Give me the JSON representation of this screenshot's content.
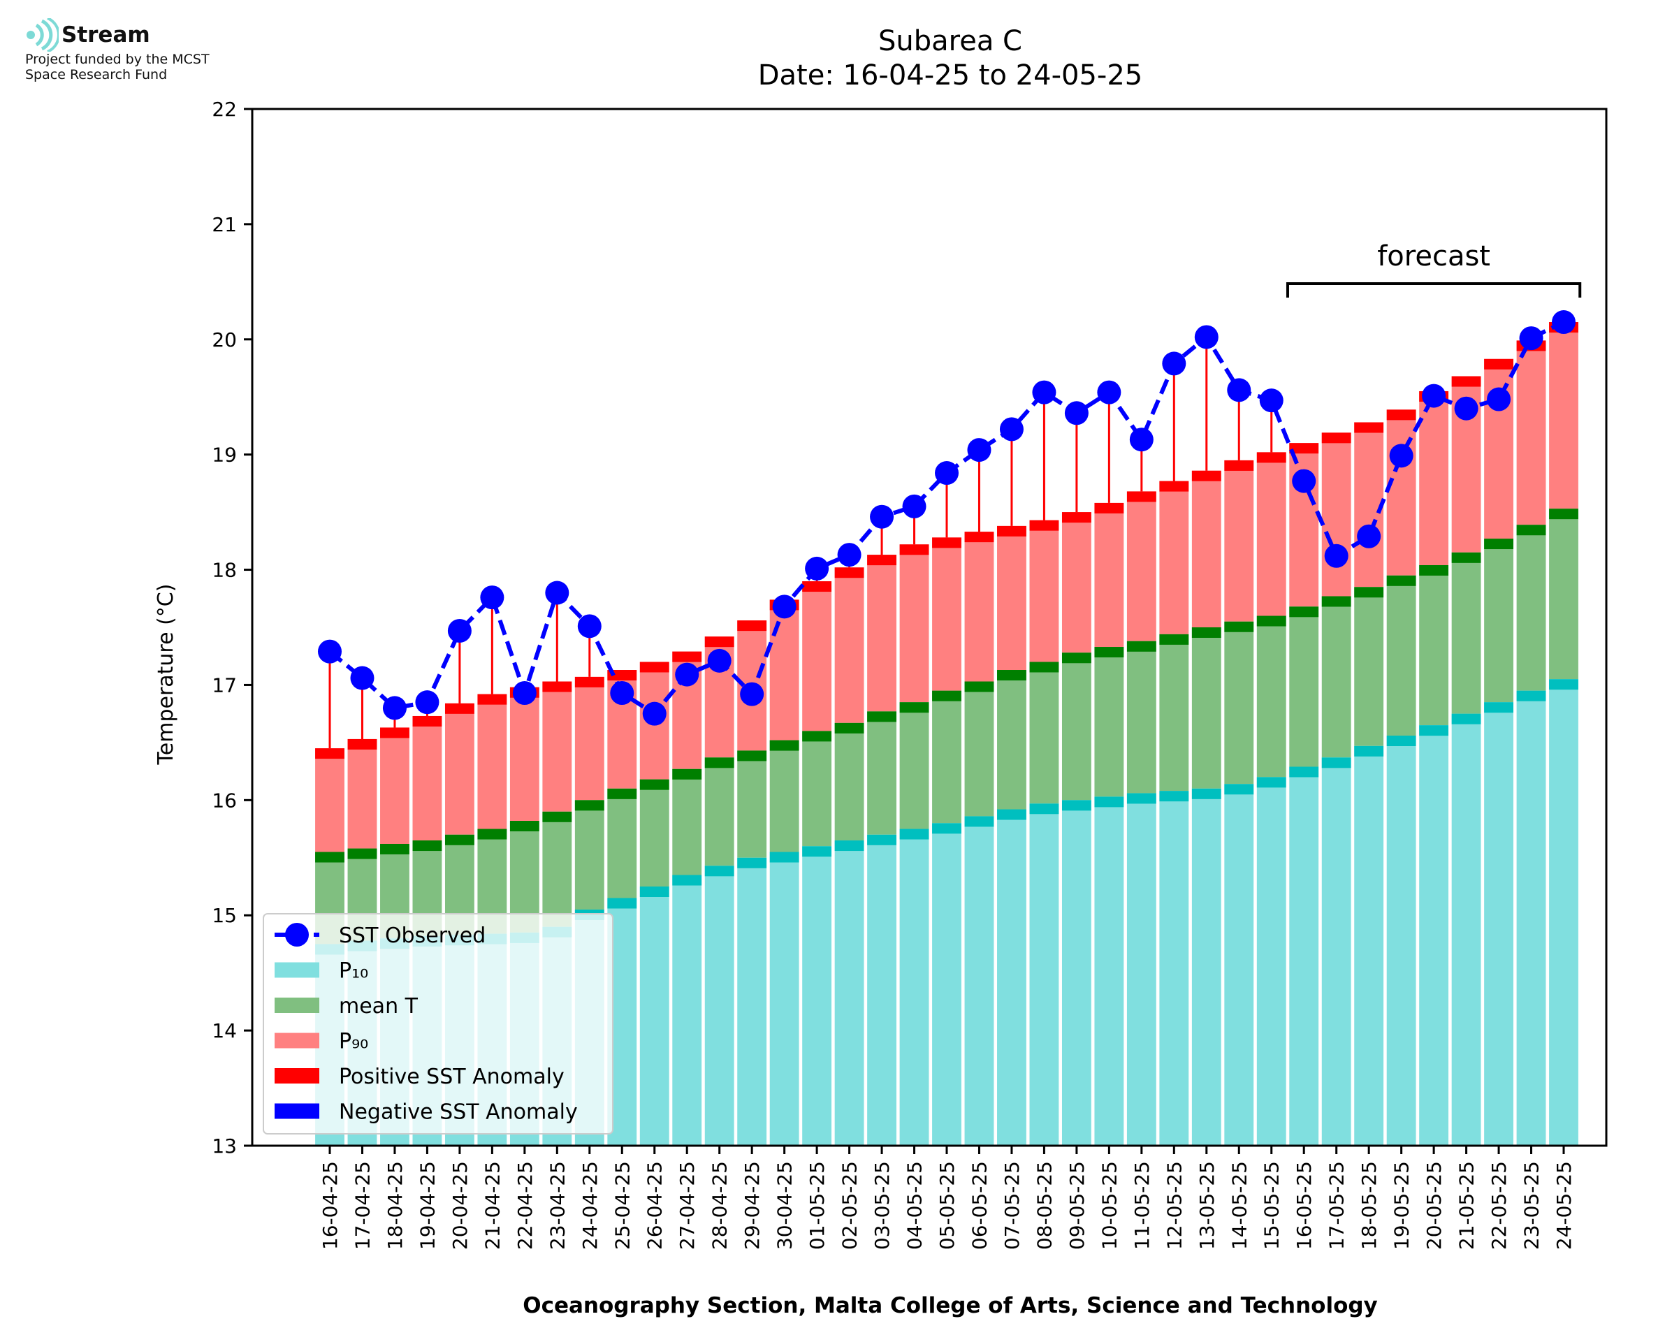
{
  "logo": {
    "name": "Stream",
    "line1": "Project funded by the MCST",
    "line2": "Space Research Fund",
    "color": "#7ddad6"
  },
  "chart_data": {
    "type": "bar",
    "title": "Subarea C",
    "subtitle": "Date: 16-04-25 to 24-05-25",
    "xlabel": "Oceanography Section, Malta College of Arts, Science and Technology",
    "ylabel": "Temperature (°C)",
    "ylim": [
      13,
      22
    ],
    "yticks": [
      13,
      14,
      15,
      16,
      17,
      18,
      19,
      20,
      21,
      22
    ],
    "grid": false,
    "legend_position": "lower-left",
    "forecast_label": "forecast",
    "forecast_range": [
      "16-05-25",
      "24-05-25"
    ],
    "categories": [
      "16-04-25",
      "17-04-25",
      "18-04-25",
      "19-04-25",
      "20-04-25",
      "21-04-25",
      "22-04-25",
      "23-04-25",
      "24-04-25",
      "25-04-25",
      "26-04-25",
      "27-04-25",
      "28-04-25",
      "29-04-25",
      "30-04-25",
      "01-05-25",
      "02-05-25",
      "03-05-25",
      "04-05-25",
      "05-05-25",
      "06-05-25",
      "07-05-25",
      "08-05-25",
      "09-05-25",
      "10-05-25",
      "11-05-25",
      "12-05-25",
      "13-05-25",
      "14-05-25",
      "15-05-25",
      "16-05-25",
      "17-05-25",
      "18-05-25",
      "19-05-25",
      "20-05-25",
      "21-05-25",
      "22-05-25",
      "23-05-25",
      "24-05-25"
    ],
    "series": [
      {
        "name": "P₁₀",
        "color": "#80dfdf",
        "edge_color": "#00bfbf",
        "values": [
          14.75,
          14.78,
          14.8,
          14.82,
          14.83,
          14.84,
          14.85,
          14.9,
          15.05,
          15.15,
          15.25,
          15.35,
          15.43,
          15.5,
          15.55,
          15.6,
          15.65,
          15.7,
          15.75,
          15.8,
          15.86,
          15.92,
          15.97,
          16.0,
          16.03,
          16.06,
          16.08,
          16.1,
          16.14,
          16.2,
          16.29,
          16.37,
          16.47,
          16.56,
          16.65,
          16.75,
          16.85,
          16.95,
          17.05
        ]
      },
      {
        "name": "mean T",
        "color": "#80bf80",
        "edge_color": "#007f00",
        "values": [
          15.55,
          15.58,
          15.62,
          15.65,
          15.7,
          15.75,
          15.82,
          15.9,
          16.0,
          16.1,
          16.18,
          16.27,
          16.37,
          16.43,
          16.52,
          16.6,
          16.67,
          16.77,
          16.85,
          16.95,
          17.03,
          17.13,
          17.2,
          17.28,
          17.33,
          17.38,
          17.44,
          17.5,
          17.55,
          17.6,
          17.68,
          17.77,
          17.85,
          17.95,
          18.04,
          18.15,
          18.27,
          18.39,
          18.53
        ]
      },
      {
        "name": "P₉₀",
        "color": "#ff8080",
        "edge_color": "#ff0000",
        "values": [
          16.45,
          16.53,
          16.63,
          16.73,
          16.84,
          16.92,
          16.98,
          17.03,
          17.07,
          17.13,
          17.2,
          17.29,
          17.42,
          17.56,
          17.74,
          17.9,
          18.02,
          18.13,
          18.22,
          18.28,
          18.33,
          18.38,
          18.43,
          18.5,
          18.58,
          18.68,
          18.77,
          18.86,
          18.95,
          19.02,
          19.1,
          19.19,
          19.28,
          19.39,
          19.55,
          19.68,
          19.83,
          19.99,
          20.15
        ]
      },
      {
        "name": "SST Observed",
        "color": "#0000ff",
        "values": [
          17.29,
          17.06,
          16.8,
          16.85,
          17.47,
          17.76,
          16.93,
          17.8,
          17.51,
          16.93,
          16.75,
          17.09,
          17.21,
          16.92,
          17.68,
          18.01,
          18.13,
          18.46,
          18.55,
          18.84,
          19.04,
          19.22,
          19.54,
          19.36,
          19.54,
          19.13,
          19.79,
          20.02,
          19.56,
          19.47,
          18.77,
          18.12,
          18.29,
          18.99,
          19.51,
          19.4,
          19.48,
          20.01,
          20.15
        ]
      }
    ],
    "legend": [
      {
        "label": "SST Observed",
        "kind": "line-marker",
        "color": "#0000ff"
      },
      {
        "label": "P₁₀",
        "kind": "patch",
        "color": "#80dfdf"
      },
      {
        "label": "mean T",
        "kind": "patch",
        "color": "#80bf80"
      },
      {
        "label": "P₉₀",
        "kind": "patch",
        "color": "#ff8080"
      },
      {
        "label": "Positive SST Anomaly",
        "kind": "patch",
        "color": "#ff0000"
      },
      {
        "label": "Negative SST Anomaly",
        "kind": "patch",
        "color": "#0000ff"
      }
    ]
  }
}
